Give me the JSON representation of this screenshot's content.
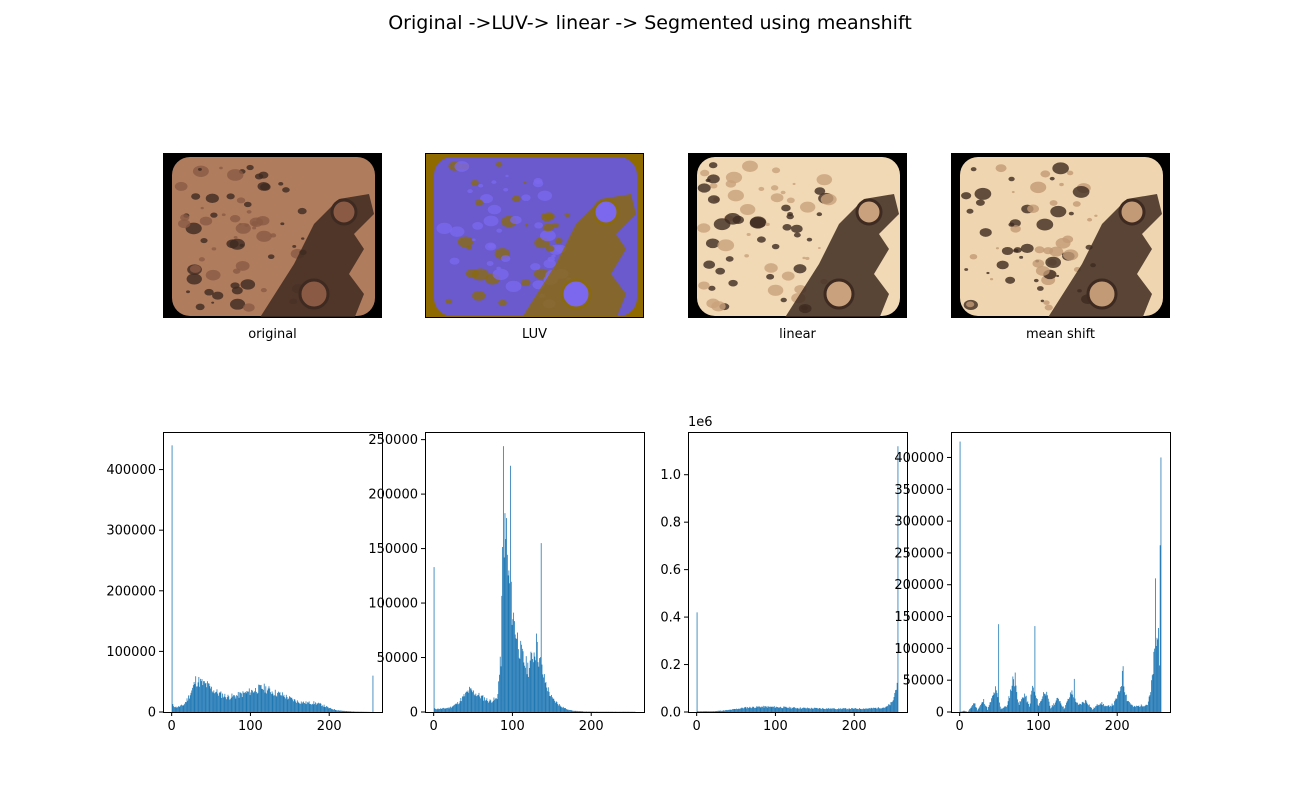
{
  "figure": {
    "title": "Original ->LUV-> linear -> Segmented using meanshift"
  },
  "images": [
    {
      "label": "original",
      "palette": {
        "ground": "#b07c5e",
        "mid": "#8a5a44",
        "dark": "#3e2a20",
        "border": "#000000"
      }
    },
    {
      "label": "LUV",
      "palette": {
        "ground": "#6a5acd",
        "mid": "#7b68ee",
        "dark": "#8a6a10",
        "border": "#8f6a00"
      }
    },
    {
      "label": "linear",
      "palette": {
        "ground": "#f1d9b5",
        "mid": "#c9a17c",
        "dark": "#3e2a20",
        "border": "#000000"
      }
    },
    {
      "label": "mean shift",
      "palette": {
        "ground": "#f0d6b0",
        "mid": "#c29a75",
        "dark": "#3e2a20",
        "border": "#000000"
      }
    }
  ],
  "colors": {
    "bar": "#1f77b4",
    "axes": "#000000"
  },
  "chart_data": [
    {
      "type": "bar",
      "title": "",
      "xlabel": "",
      "ylabel": "",
      "xlim": [
        -11,
        267
      ],
      "ylim": [
        0,
        462000
      ],
      "xticks": [
        0,
        100,
        200
      ],
      "yticks": [
        0,
        100000,
        200000,
        300000,
        400000
      ],
      "ytick_labels": [
        "0",
        "100000",
        "200000",
        "300000",
        "400000"
      ],
      "offset_label": "",
      "spikes": [
        [
          0,
          440000
        ],
        [
          255,
          60000
        ]
      ],
      "profile": [
        [
          0,
          12000
        ],
        [
          5,
          8000
        ],
        [
          10,
          9000
        ],
        [
          15,
          12000
        ],
        [
          20,
          22000
        ],
        [
          25,
          35000
        ],
        [
          30,
          52000
        ],
        [
          35,
          50000
        ],
        [
          40,
          46000
        ],
        [
          45,
          44000
        ],
        [
          50,
          38000
        ],
        [
          55,
          34000
        ],
        [
          60,
          30000
        ],
        [
          70,
          25000
        ],
        [
          80,
          26000
        ],
        [
          90,
          30000
        ],
        [
          100,
          34000
        ],
        [
          110,
          38000
        ],
        [
          115,
          40000
        ],
        [
          120,
          38000
        ],
        [
          130,
          32000
        ],
        [
          140,
          28000
        ],
        [
          150,
          22000
        ],
        [
          160,
          17000
        ],
        [
          170,
          15000
        ],
        [
          180,
          15000
        ],
        [
          190,
          12000
        ],
        [
          200,
          6000
        ],
        [
          210,
          3000
        ],
        [
          220,
          1500
        ],
        [
          230,
          800
        ],
        [
          240,
          400
        ],
        [
          250,
          200
        ],
        [
          255,
          0
        ]
      ]
    },
    {
      "type": "bar",
      "title": "",
      "xlabel": "",
      "ylabel": "",
      "xlim": [
        -11,
        267
      ],
      "ylim": [
        0,
        257000
      ],
      "xticks": [
        0,
        100,
        200
      ],
      "yticks": [
        0,
        50000,
        100000,
        150000,
        200000,
        250000
      ],
      "ytick_labels": [
        "0",
        "50000",
        "100000",
        "150000",
        "200000",
        "250000"
      ],
      "offset_label": "",
      "spikes": [
        [
          0,
          133000
        ],
        [
          88,
          244000
        ],
        [
          92,
          178000
        ],
        [
          97,
          226000
        ],
        [
          136,
          155000
        ],
        [
          130,
          72000
        ]
      ],
      "profile": [
        [
          0,
          3000
        ],
        [
          10,
          3000
        ],
        [
          20,
          4000
        ],
        [
          30,
          8000
        ],
        [
          40,
          16000
        ],
        [
          45,
          20000
        ],
        [
          50,
          18000
        ],
        [
          60,
          14000
        ],
        [
          70,
          10000
        ],
        [
          80,
          12000
        ],
        [
          85,
          50000
        ],
        [
          88,
          180000
        ],
        [
          90,
          160000
        ],
        [
          95,
          120000
        ],
        [
          100,
          90000
        ],
        [
          105,
          70000
        ],
        [
          110,
          55000
        ],
        [
          115,
          45000
        ],
        [
          120,
          40000
        ],
        [
          125,
          52000
        ],
        [
          130,
          58000
        ],
        [
          135,
          45000
        ],
        [
          140,
          30000
        ],
        [
          145,
          20000
        ],
        [
          150,
          12000
        ],
        [
          160,
          6000
        ],
        [
          170,
          2000
        ],
        [
          180,
          1000
        ],
        [
          190,
          500
        ],
        [
          200,
          300
        ],
        [
          255,
          200
        ]
      ]
    },
    {
      "type": "bar",
      "title": "",
      "xlabel": "",
      "ylabel": "",
      "xlim": [
        -11,
        267
      ],
      "ylim": [
        0,
        1180000
      ],
      "xticks": [
        0,
        100,
        200
      ],
      "yticks": [
        0,
        200000,
        400000,
        600000,
        800000,
        1000000
      ],
      "ytick_labels": [
        "0.0",
        "0.2",
        "0.4",
        "0.6",
        "0.8",
        "1.0"
      ],
      "offset_label": "1e6",
      "spikes": [
        [
          0,
          420000
        ],
        [
          255,
          1120000
        ]
      ],
      "profile": [
        [
          0,
          3000
        ],
        [
          20,
          3000
        ],
        [
          40,
          8000
        ],
        [
          60,
          18000
        ],
        [
          80,
          22000
        ],
        [
          100,
          21000
        ],
        [
          120,
          18000
        ],
        [
          140,
          16000
        ],
        [
          160,
          15000
        ],
        [
          180,
          14000
        ],
        [
          200,
          14000
        ],
        [
          220,
          15000
        ],
        [
          240,
          20000
        ],
        [
          248,
          40000
        ],
        [
          252,
          90000
        ],
        [
          254,
          140000
        ]
      ]
    },
    {
      "type": "bar",
      "title": "",
      "xlabel": "",
      "ylabel": "",
      "xlim": [
        -11,
        267
      ],
      "ylim": [
        0,
        440000
      ],
      "xticks": [
        0,
        100,
        200
      ],
      "yticks": [
        0,
        50000,
        100000,
        150000,
        200000,
        250000,
        300000,
        350000,
        400000
      ],
      "ytick_labels": [
        "0",
        "50000",
        "100000",
        "150000",
        "200000",
        "250000",
        "300000",
        "350000",
        "400000"
      ],
      "offset_label": "",
      "spikes": [
        [
          0,
          425000
        ],
        [
          49,
          138000
        ],
        [
          95,
          135000
        ],
        [
          70,
          62000
        ],
        [
          145,
          52000
        ],
        [
          207,
          72000
        ],
        [
          248,
          210000
        ],
        [
          252,
          132000
        ],
        [
          254,
          262000
        ],
        [
          255,
          400000
        ]
      ],
      "profile": [
        [
          0,
          0
        ],
        [
          5,
          2000
        ],
        [
          10,
          0
        ],
        [
          18,
          15000
        ],
        [
          22,
          3000
        ],
        [
          30,
          18000
        ],
        [
          35,
          4000
        ],
        [
          45,
          35000
        ],
        [
          52,
          5000
        ],
        [
          60,
          10000
        ],
        [
          68,
          55000
        ],
        [
          75,
          12000
        ],
        [
          82,
          28000
        ],
        [
          88,
          8000
        ],
        [
          92,
          40000
        ],
        [
          100,
          10000
        ],
        [
          108,
          35000
        ],
        [
          115,
          6000
        ],
        [
          125,
          22000
        ],
        [
          132,
          5000
        ],
        [
          142,
          32000
        ],
        [
          150,
          10000
        ],
        [
          160,
          18000
        ],
        [
          168,
          4000
        ],
        [
          178,
          15000
        ],
        [
          186,
          8000
        ],
        [
          195,
          12000
        ],
        [
          202,
          30000
        ],
        [
          206,
          55000
        ],
        [
          212,
          20000
        ],
        [
          220,
          8000
        ],
        [
          230,
          10000
        ],
        [
          238,
          12000
        ],
        [
          242,
          30000
        ],
        [
          246,
          80000
        ],
        [
          250,
          120000
        ],
        [
          253,
          90000
        ]
      ]
    }
  ]
}
